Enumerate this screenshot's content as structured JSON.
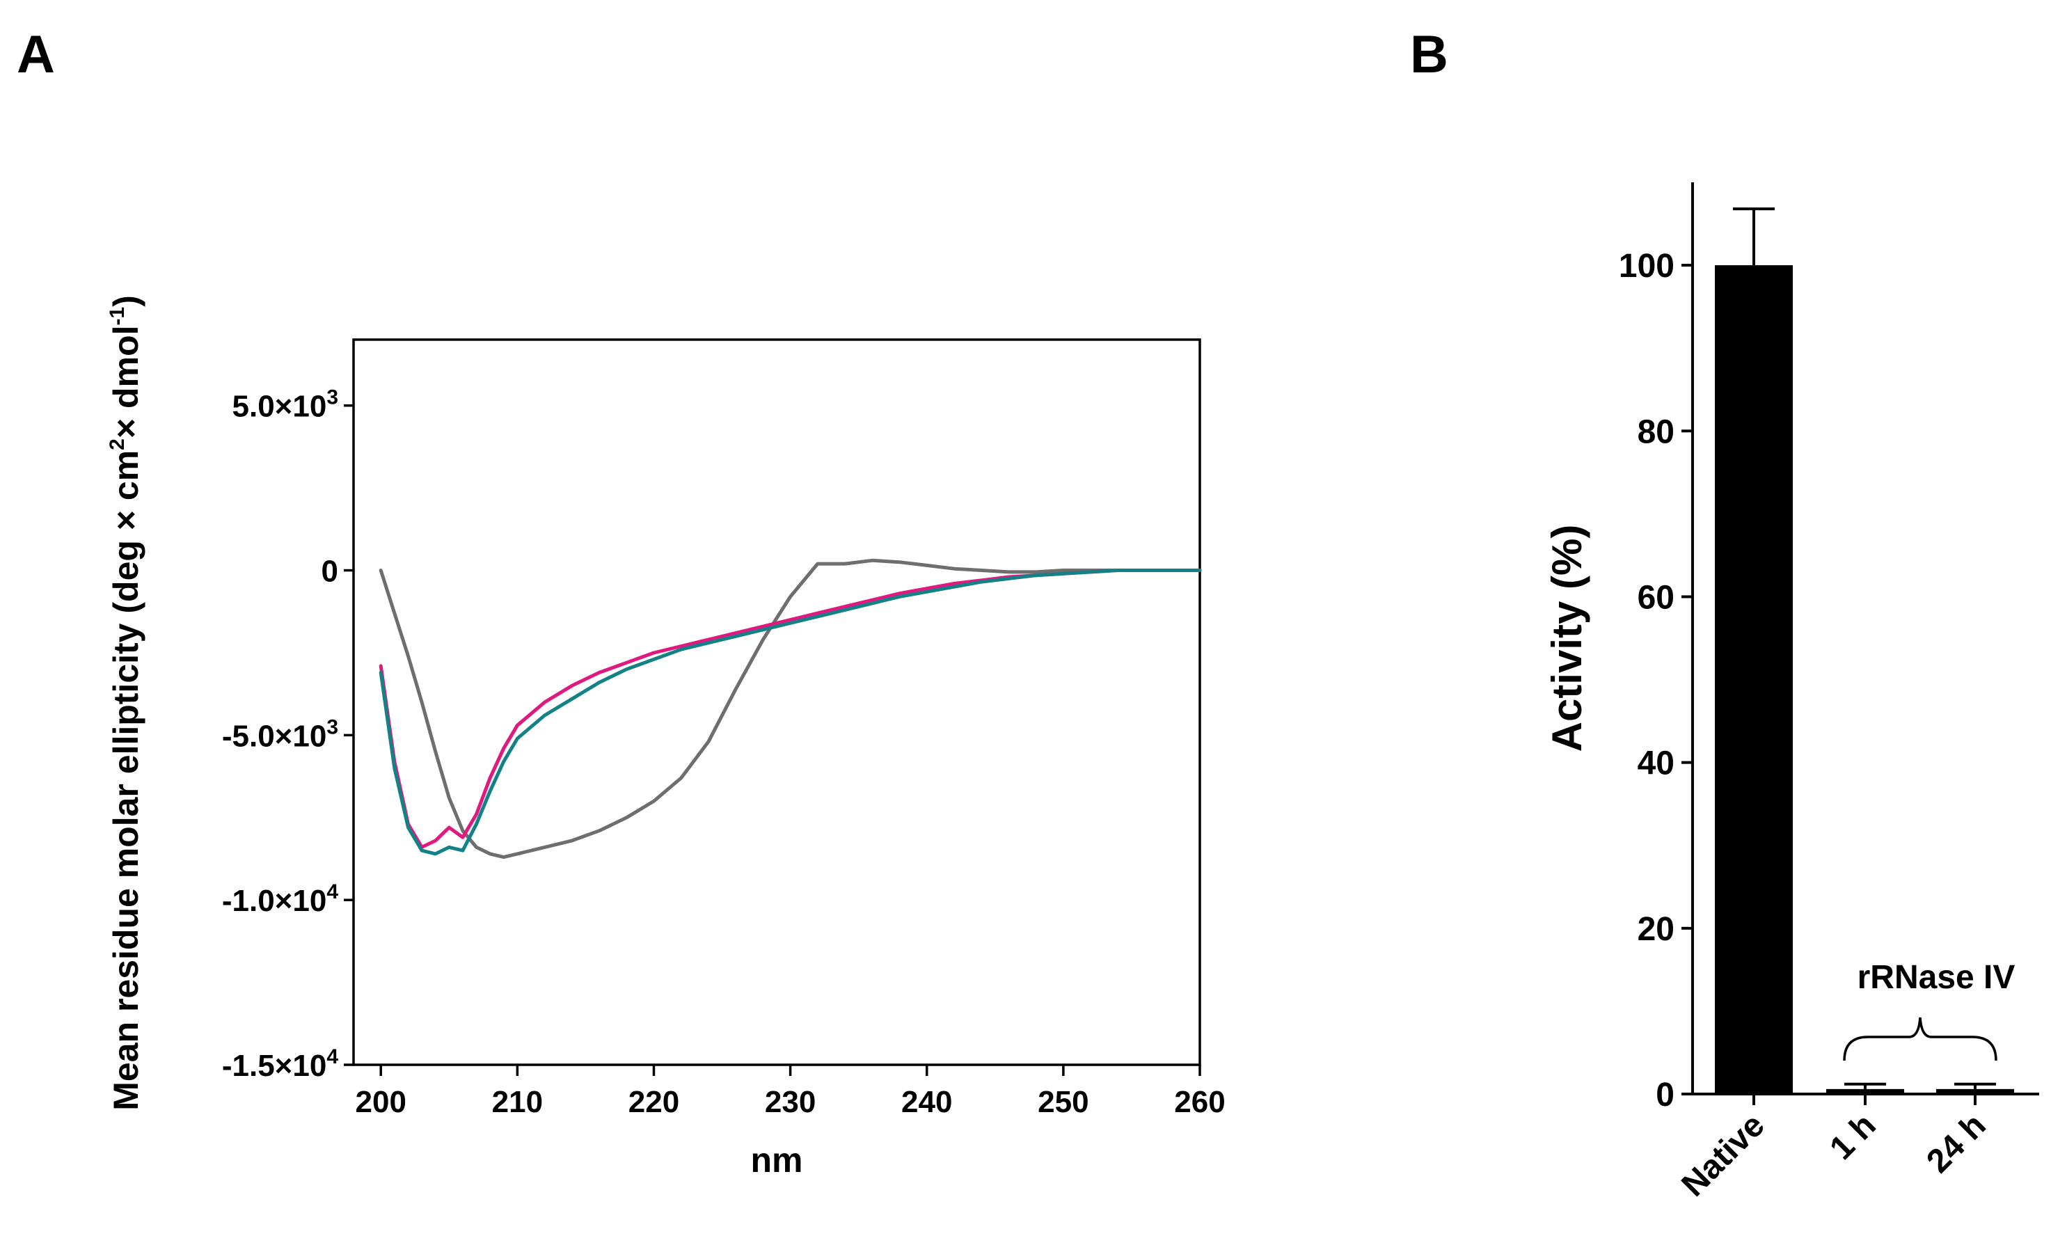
{
  "panels": {
    "a": {
      "letter": "A"
    },
    "b": {
      "letter": "B"
    }
  },
  "chart_data": [
    {
      "type": "line",
      "panel": "A",
      "xlabel": "nm",
      "ylabel_parts": [
        "Mean residue molar ellipticity (deg × cm",
        "2",
        "× dmol",
        "-1",
        ")"
      ],
      "xlim": [
        198,
        260
      ],
      "ylim": [
        -15000,
        7000
      ],
      "xticks": [
        {
          "value": 200,
          "label": "200"
        },
        {
          "value": 210,
          "label": "210"
        },
        {
          "value": 220,
          "label": "220"
        },
        {
          "value": 230,
          "label": "230"
        },
        {
          "value": 240,
          "label": "240"
        },
        {
          "value": 250,
          "label": "250"
        },
        {
          "value": 260,
          "label": "260"
        }
      ],
      "yticks": [
        {
          "value": 5000,
          "mant": "5.0×10",
          "exp": "3"
        },
        {
          "value": 0,
          "mant": "0",
          "exp": ""
        },
        {
          "value": -5000,
          "mant": "-5.0×10",
          "exp": "3"
        },
        {
          "value": -10000,
          "mant": "-1.0×10",
          "exp": "4"
        },
        {
          "value": -15000,
          "mant": "-1.5×10",
          "exp": "4"
        }
      ],
      "colors": {
        "gray": "#6e6e6e",
        "magenta": "#e0197f",
        "teal": "#128286"
      },
      "series": [
        {
          "name": "gray",
          "x": [
            200,
            201,
            202,
            203,
            204,
            205,
            206,
            207,
            208,
            209,
            210,
            212,
            214,
            216,
            218,
            220,
            222,
            224,
            226,
            228,
            230,
            232,
            234,
            236,
            238,
            240,
            242,
            244,
            246,
            248,
            250,
            252,
            254,
            256,
            258,
            260
          ],
          "values": [
            0,
            -1300,
            -2600,
            -4000,
            -5500,
            -6900,
            -7900,
            -8400,
            -8600,
            -8700,
            -8600,
            -8400,
            -8200,
            -7900,
            -7500,
            -7000,
            -6300,
            -5200,
            -3600,
            -2100,
            -800,
            200,
            200,
            300,
            250,
            150,
            50,
            0,
            -50,
            -50,
            0,
            0,
            0,
            0,
            0,
            0
          ]
        },
        {
          "name": "magenta",
          "x": [
            200,
            201,
            202,
            203,
            204,
            205,
            206,
            207,
            208,
            209,
            210,
            212,
            214,
            216,
            218,
            220,
            222,
            224,
            226,
            228,
            230,
            232,
            234,
            236,
            238,
            240,
            242,
            244,
            246,
            248,
            250,
            252,
            254,
            256,
            258,
            260
          ],
          "values": [
            -2900,
            -5800,
            -7700,
            -8400,
            -8200,
            -7800,
            -8100,
            -7400,
            -6300,
            -5400,
            -4700,
            -4000,
            -3500,
            -3100,
            -2800,
            -2500,
            -2300,
            -2100,
            -1900,
            -1700,
            -1500,
            -1300,
            -1100,
            -900,
            -700,
            -550,
            -400,
            -300,
            -200,
            -150,
            -100,
            -50,
            0,
            0,
            0,
            0
          ]
        },
        {
          "name": "teal",
          "x": [
            200,
            201,
            202,
            203,
            204,
            205,
            206,
            207,
            208,
            209,
            210,
            212,
            214,
            216,
            218,
            220,
            222,
            224,
            226,
            228,
            230,
            232,
            234,
            236,
            238,
            240,
            242,
            244,
            246,
            248,
            250,
            252,
            254,
            256,
            258,
            260
          ],
          "values": [
            -3100,
            -6000,
            -7800,
            -8500,
            -8600,
            -8400,
            -8500,
            -7700,
            -6700,
            -5800,
            -5100,
            -4400,
            -3900,
            -3400,
            -3000,
            -2700,
            -2400,
            -2200,
            -2000,
            -1800,
            -1600,
            -1400,
            -1200,
            -1000,
            -800,
            -650,
            -500,
            -350,
            -250,
            -150,
            -100,
            -50,
            0,
            0,
            0,
            0
          ]
        }
      ]
    },
    {
      "type": "bar",
      "panel": "B",
      "ylabel": "Activity (%)",
      "ylim": [
        0,
        110
      ],
      "yticks": [
        {
          "value": 0,
          "label": "0"
        },
        {
          "value": 20,
          "label": "20"
        },
        {
          "value": 40,
          "label": "40"
        },
        {
          "value": 60,
          "label": "60"
        },
        {
          "value": 80,
          "label": "80"
        },
        {
          "value": 100,
          "label": "100"
        }
      ],
      "categories": [
        "Native",
        "1 h",
        "24 h"
      ],
      "values": [
        100,
        0.6,
        0.6
      ],
      "errors": [
        6.8,
        0.6,
        0.6
      ],
      "bar_color": "#000000",
      "annotation": "rRNase IV"
    }
  ]
}
